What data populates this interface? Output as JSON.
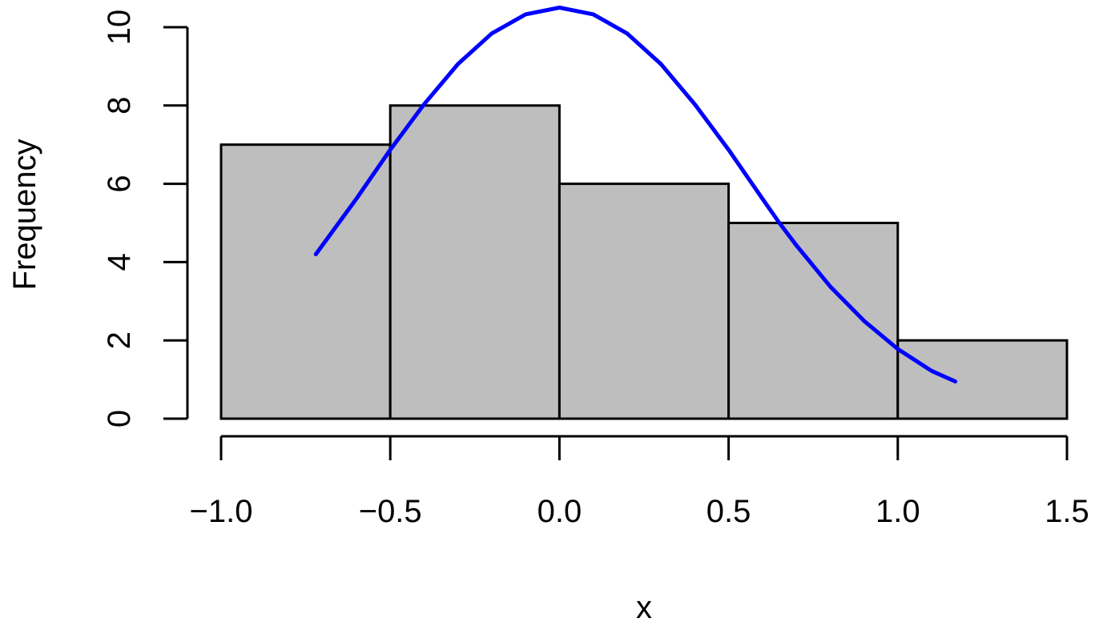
{
  "chart_data": {
    "type": "bar",
    "subtype": "histogram",
    "title": "",
    "xlabel": "x",
    "ylabel": "Frequency",
    "bins": [
      {
        "start": -1.0,
        "end": -0.5,
        "count": 7
      },
      {
        "start": -0.5,
        "end": 0.0,
        "count": 8
      },
      {
        "start": 0.0,
        "end": 0.5,
        "count": 6
      },
      {
        "start": 0.5,
        "end": 1.0,
        "count": 5
      },
      {
        "start": 1.0,
        "end": 1.5,
        "count": 2
      }
    ],
    "xlim": [
      -1.0,
      1.5
    ],
    "ylim": [
      0,
      10
    ],
    "x_ticks": [
      -1.0,
      -0.5,
      0.0,
      0.5,
      1.0,
      1.5
    ],
    "x_tick_labels": [
      "−1.0",
      "−0.5",
      "0.0",
      "0.5",
      "1.0",
      "1.5"
    ],
    "y_ticks": [
      0,
      2,
      4,
      6,
      8,
      10
    ],
    "y_tick_labels": [
      "0",
      "2",
      "4",
      "6",
      "8",
      "10"
    ],
    "grid": false,
    "bar_color": "#bebebe",
    "curve": {
      "type": "line",
      "color": "#0000ff",
      "points": [
        [
          -0.72,
          4.2
        ],
        [
          -0.6,
          5.62
        ],
        [
          -0.5,
          6.87
        ],
        [
          -0.4,
          8.03
        ],
        [
          -0.3,
          9.06
        ],
        [
          -0.2,
          9.84
        ],
        [
          -0.1,
          10.33
        ],
        [
          0.0,
          10.5
        ],
        [
          0.1,
          10.33
        ],
        [
          0.2,
          9.84
        ],
        [
          0.3,
          9.06
        ],
        [
          0.4,
          8.03
        ],
        [
          0.5,
          6.87
        ],
        [
          0.6,
          5.62
        ],
        [
          0.65,
          5.0
        ],
        [
          0.7,
          4.43
        ],
        [
          0.8,
          3.38
        ],
        [
          0.9,
          2.5
        ],
        [
          1.0,
          1.78
        ],
        [
          1.1,
          1.22
        ],
        [
          1.17,
          0.95
        ]
      ]
    }
  }
}
